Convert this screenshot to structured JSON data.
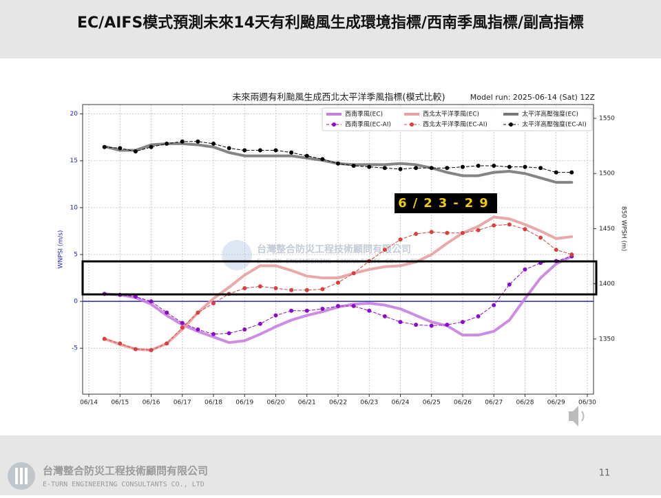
{
  "slide": {
    "title": "EC/AIFS模式預測未來14天有利颱風生成環境指標/西南季風指標/副高指標",
    "annotation": "6/23-29",
    "watermark": {
      "name": "台灣整合防災工程技術顧問有限公司",
      "english": "E-TURN ENGINEERING CONSULTANTS CO., LTD"
    },
    "footer": {
      "company": "台灣整合防災工程技術顧問有限公司",
      "english": "E-TURN ENGINEERING CONSULTANTS CO., LTD"
    },
    "page_number": "11"
  },
  "chart_data": {
    "type": "line",
    "title": "未來兩週有利颱風生成西北太平洋季風指標(模式比較)",
    "subtitle": "Model run: 2025-06-14 (Sat) 12Z",
    "ylabel": "WNPSI (m/s)",
    "y2label": "850 WPSH (m)",
    "legend": "upper right",
    "grid": true,
    "zero_line_color": "#2222cc",
    "x": [
      14.5,
      15,
      15.5,
      16,
      16.5,
      17,
      17.5,
      18,
      18.5,
      19,
      19.5,
      20,
      20.5,
      21,
      21.5,
      22,
      22.5,
      23,
      23.5,
      24,
      24.5,
      25,
      25.5,
      26,
      26.5,
      27,
      27.5,
      28,
      28.5,
      29,
      29.5
    ],
    "xlim": [
      13.8,
      30.2
    ],
    "xticks": [
      {
        "value": 14,
        "label": "06/14"
      },
      {
        "value": 15,
        "label": "06/15"
      },
      {
        "value": 16,
        "label": "06/16"
      },
      {
        "value": 17,
        "label": "06/17"
      },
      {
        "value": 18,
        "label": "06/18"
      },
      {
        "value": 19,
        "label": "06/19"
      },
      {
        "value": 20,
        "label": "06/20"
      },
      {
        "value": 21,
        "label": "06/21"
      },
      {
        "value": 22,
        "label": "06/22"
      },
      {
        "value": 23,
        "label": "06/23"
      },
      {
        "value": 24,
        "label": "06/24"
      },
      {
        "value": 25,
        "label": "06/25"
      },
      {
        "value": 26,
        "label": "06/26"
      },
      {
        "value": 27,
        "label": "06/27"
      },
      {
        "value": 28,
        "label": "06/28"
      },
      {
        "value": 29,
        "label": "06/29"
      },
      {
        "value": 30,
        "label": "06/30"
      }
    ],
    "ylim": [
      -9.9,
      21
    ],
    "yticks": [
      -5,
      0,
      5,
      10,
      15,
      20
    ],
    "y2lim": [
      1300,
      1562.5
    ],
    "y2ticks": [
      1350,
      1400,
      1450,
      1500,
      1550
    ],
    "series": [
      {
        "name": "西南季風(EC)",
        "color": "#c77fe0",
        "linestyle": "solid",
        "marker": "none",
        "values": [
          0.8,
          0.7,
          0.4,
          -0.3,
          -1.5,
          -2.5,
          -3.2,
          -3.8,
          -4.4,
          -4.2,
          -3.5,
          -2.7,
          -2.0,
          -1.5,
          -1.1,
          -0.6,
          -0.3,
          -0.2,
          -0.4,
          -0.8,
          -1.5,
          -2.2,
          -2.6,
          -3.6,
          -3.6,
          -3.2,
          -2.0,
          0.3,
          2.5,
          4.0,
          4.8
        ]
      },
      {
        "name": "西南季風(EC-AI)",
        "color": "#8a0cc8",
        "linestyle": "dashed",
        "marker": "o",
        "values": [
          0.8,
          0.7,
          0.5,
          0,
          -1.2,
          -2.3,
          -3.0,
          -3.5,
          -3.4,
          -3.0,
          -2.4,
          -1.5,
          -1.0,
          -1.0,
          -0.8,
          -0.5,
          -0.5,
          -1.0,
          -1.6,
          -2.2,
          -2.5,
          -2.6,
          -2.5,
          -2.2,
          -1.6,
          -0.4,
          1.8,
          3.4,
          4.1,
          4.3,
          4.8
        ]
      },
      {
        "name": "西北太平洋季風(EC)",
        "color": "#e8a0a0",
        "linestyle": "solid",
        "marker": "none",
        "values": [
          -4,
          -4.6,
          -5.1,
          -5.2,
          -4.5,
          -3.0,
          -1.2,
          0.3,
          1.5,
          2.8,
          3.8,
          3.8,
          3.3,
          2.7,
          2.5,
          2.5,
          3.0,
          3.4,
          3.7,
          3.8,
          4.2,
          5.0,
          6.2,
          7.3,
          8.0,
          9.0,
          8.8,
          8.2,
          7.5,
          6.7,
          6.9
        ]
      },
      {
        "name": "西北太平洋季風(EC-AI)",
        "color": "#d84040",
        "linestyle": "dashed",
        "marker": "o",
        "values": [
          -4,
          -4.5,
          -5.1,
          -5.2,
          -4.5,
          -2.8,
          -1.2,
          -0.2,
          0.8,
          1.4,
          1.6,
          1.4,
          1.2,
          1.2,
          1.3,
          2.0,
          3.0,
          4.3,
          5.5,
          6.6,
          7.2,
          7.4,
          7.3,
          7.3,
          7.6,
          8.1,
          8.2,
          7.7,
          6.8,
          5.5,
          5.0
        ]
      },
      {
        "name": "太平洋高壓強度(EC)",
        "color": "#777777",
        "linestyle": "solid",
        "marker": "none",
        "axis": "y2",
        "values": [
          1524.5,
          1521,
          1521,
          1526,
          1527,
          1527,
          1526,
          1524,
          1519,
          1516,
          1516,
          1516,
          1516,
          1514,
          1512,
          1509,
          1508,
          1508,
          1508,
          1509,
          1508,
          1505,
          1501,
          1498,
          1498,
          1501,
          1502,
          1500,
          1496,
          1492,
          1492
        ]
      },
      {
        "name": "太平洋高壓強度(EC-AI)",
        "color": "#000000",
        "linestyle": "dashed",
        "marker": "o",
        "axis": "y2",
        "values": [
          1524,
          1523,
          1520,
          1524,
          1527,
          1529,
          1529,
          1527,
          1523,
          1521,
          1521,
          1521,
          1519,
          1516,
          1513,
          1509,
          1507,
          1506,
          1505,
          1504,
          1505,
          1505,
          1505,
          1506,
          1507,
          1507,
          1506,
          1506,
          1505,
          1501,
          1501
        ]
      }
    ]
  }
}
